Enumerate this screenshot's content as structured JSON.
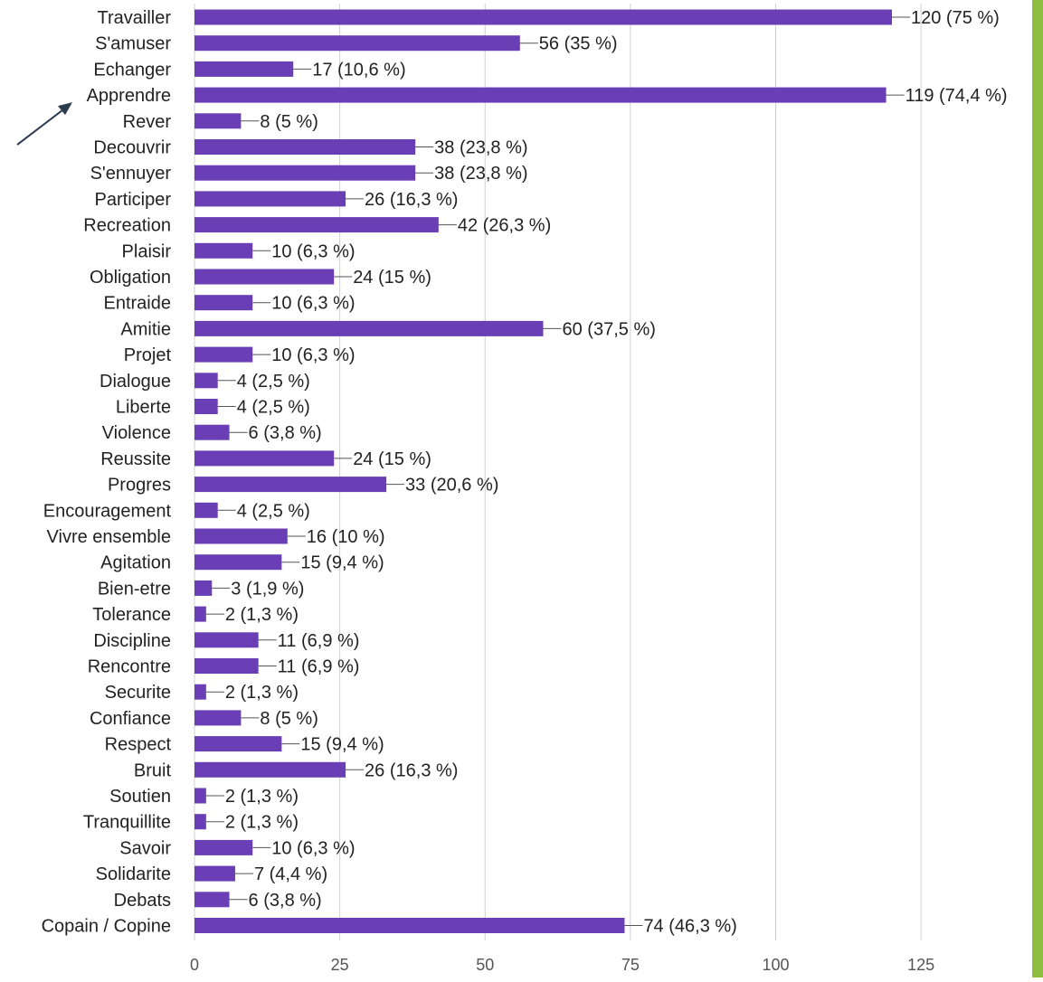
{
  "chart_data": {
    "type": "bar",
    "orientation": "horizontal",
    "title": "",
    "xlabel": "",
    "ylabel": "",
    "xlim": [
      0,
      125
    ],
    "xticks": [
      0,
      25,
      50,
      75,
      100,
      125
    ],
    "grid": true,
    "legend": "none",
    "bar_color": "#6a3fb5",
    "categories": [
      "Travailler",
      "S'amuser",
      "Echanger",
      "Apprendre",
      "Rever",
      "Decouvrir",
      "S'ennuyer",
      "Participer",
      "Recreation",
      "Plaisir",
      "Obligation",
      "Entraide",
      "Amitie",
      "Projet",
      "Dialogue",
      "Liberte",
      "Violence",
      "Reussite",
      "Progres",
      "Encouragement",
      "Vivre ensemble",
      "Agitation",
      "Bien-etre",
      "Tolerance",
      "Discipline",
      "Rencontre",
      "Securite",
      "Confiance",
      "Respect",
      "Bruit",
      "Soutien",
      "Tranquillite",
      "Savoir",
      "Solidarite",
      "Debats",
      "Copain / Copine"
    ],
    "values": [
      120,
      56,
      17,
      119,
      8,
      38,
      38,
      26,
      42,
      10,
      24,
      10,
      60,
      10,
      4,
      4,
      6,
      24,
      33,
      4,
      16,
      15,
      3,
      2,
      11,
      11,
      2,
      8,
      15,
      26,
      2,
      2,
      10,
      7,
      6,
      74
    ],
    "value_labels": [
      "120 (75 %)",
      "56 (35 %)",
      "17 (10,6 %)",
      "119 (74,4 %)",
      "8 (5 %)",
      "38 (23,8 %)",
      "38 (23,8 %)",
      "26 (16,3 %)",
      "42 (26,3 %)",
      "10 (6,3 %)",
      "24 (15 %)",
      "10 (6,3 %)",
      "60 (37,5 %)",
      "10 (6,3 %)",
      "4 (2,5 %)",
      "4 (2,5 %)",
      "6 (3,8 %)",
      "24 (15 %)",
      "33 (20,6 %)",
      "4 (2,5 %)",
      "16 (10 %)",
      "15 (9,4 %)",
      "3 (1,9 %)",
      "2 (1,3 %)",
      "11 (6,9 %)",
      "11 (6,9 %)",
      "2 (1,3 %)",
      "8 (5 %)",
      "15 (9,4 %)",
      "26 (16,3 %)",
      "2 (1,3 %)",
      "2 (1,3 %)",
      "10 (6,3 %)",
      "7 (4,4 %)",
      "6 (3,8 %)",
      "74 (46,3 %)"
    ],
    "annotation": {
      "type": "arrow",
      "points_to": "Apprendre",
      "color": "#2d3b4f"
    }
  },
  "decor": {
    "accent_stripe_color": "#8cbf3f"
  }
}
